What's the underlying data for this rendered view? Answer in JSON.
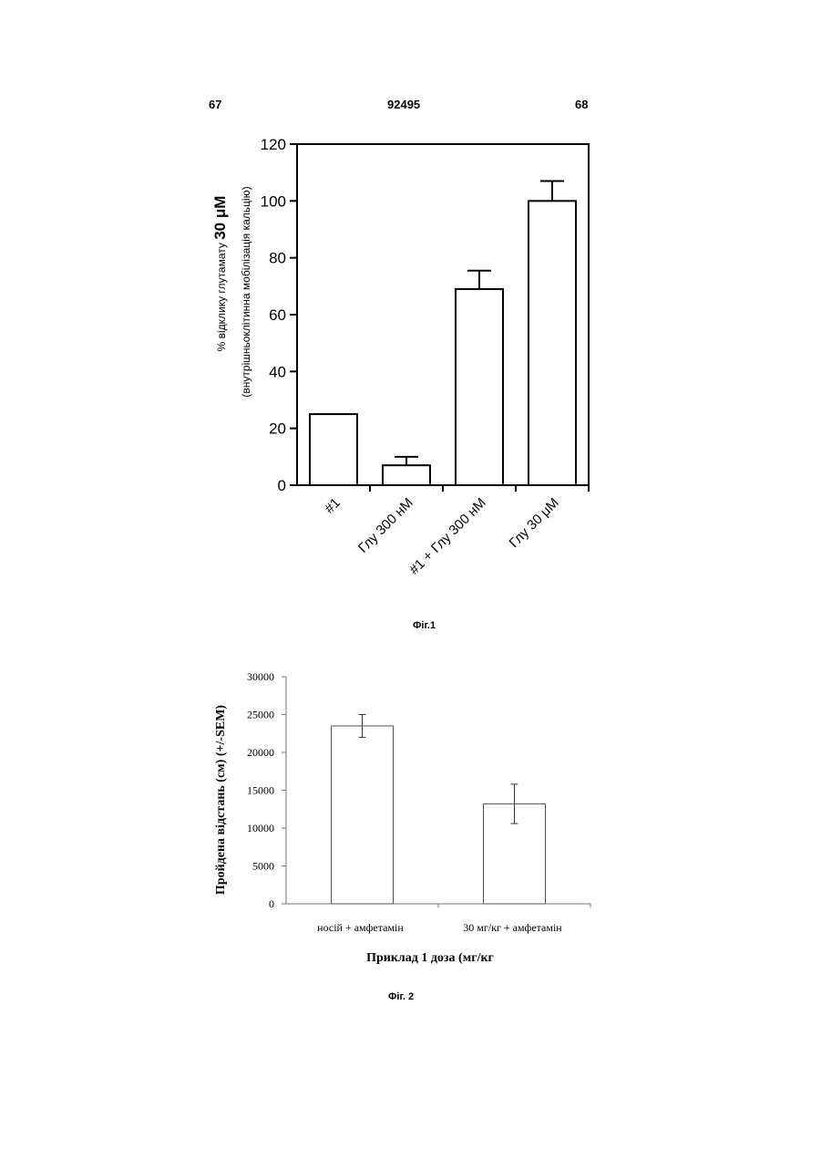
{
  "header": {
    "left_number": "67",
    "document_number": "92495",
    "right_number": "68"
  },
  "chart_data": [
    {
      "type": "bar",
      "title": "",
      "ylabel_line1_prefix": "% відклику глутамату",
      "ylabel_line1_bold": "30 μM",
      "ylabel_line2": "(внутрішньоклітинна мобілізація кальцію)",
      "xlabel": "",
      "categories": [
        "#1",
        "Глу 300 нМ",
        "#1 + Глу 300 нМ",
        "Глу 30 μM"
      ],
      "values": [
        25,
        7,
        69,
        100
      ],
      "errors": [
        0,
        3,
        6.5,
        7
      ],
      "ylim": [
        0,
        120
      ],
      "yticks": [
        0,
        20,
        40,
        60,
        80,
        100,
        120
      ],
      "grid": false,
      "caption": "Фіг.1"
    },
    {
      "type": "bar",
      "title": "",
      "ylabel": "Пройдена відстань (см) (+/-SEM)",
      "xlabel": "Приклад 1 доза (мг/кг",
      "categories": [
        "носій + амфетамін",
        "30 мг/кг + амфетамін"
      ],
      "values": [
        23500,
        13200
      ],
      "errors": [
        1500,
        2600
      ],
      "ylim": [
        0,
        30000
      ],
      "yticks": [
        0,
        5000,
        10000,
        15000,
        20000,
        25000,
        30000
      ],
      "grid": false,
      "caption": "Фіг. 2"
    }
  ]
}
